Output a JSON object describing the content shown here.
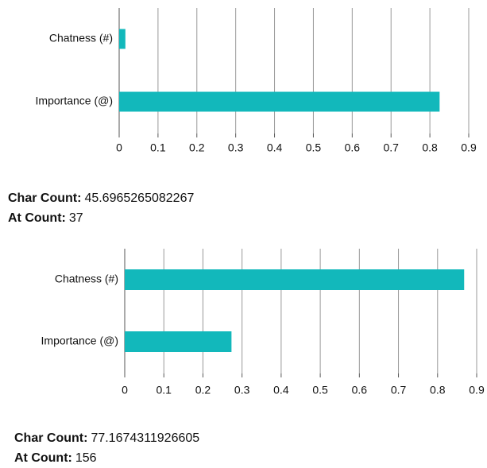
{
  "chart_data": [
    {
      "type": "bar",
      "orientation": "horizontal",
      "categories": [
        "Chatness (#)",
        "Importance (@)"
      ],
      "values": [
        0.016,
        0.825
      ],
      "color": "#12b8bb",
      "xlim": [
        0,
        0.9
      ],
      "xticks": [
        0,
        0.1,
        0.2,
        0.3,
        0.4,
        0.5,
        0.6,
        0.7,
        0.8,
        0.9
      ],
      "grid": true
    },
    {
      "type": "bar",
      "orientation": "horizontal",
      "categories": [
        "Chatness (#)",
        "Importance (@)"
      ],
      "values": [
        0.868,
        0.273
      ],
      "color": "#12b8bb",
      "xlim": [
        0,
        0.9
      ],
      "xticks": [
        0,
        0.1,
        0.2,
        0.3,
        0.4,
        0.5,
        0.6,
        0.7,
        0.8,
        0.9
      ],
      "grid": true
    }
  ],
  "stats": [
    [
      {
        "label": "Char Count:",
        "value": 45.6965265082267
      },
      {
        "label": "At Count:",
        "value": 37
      }
    ],
    [
      {
        "label": "Char Count:",
        "value": 77.1674311926605
      },
      {
        "label": "At Count:",
        "value": 156
      }
    ]
  ]
}
